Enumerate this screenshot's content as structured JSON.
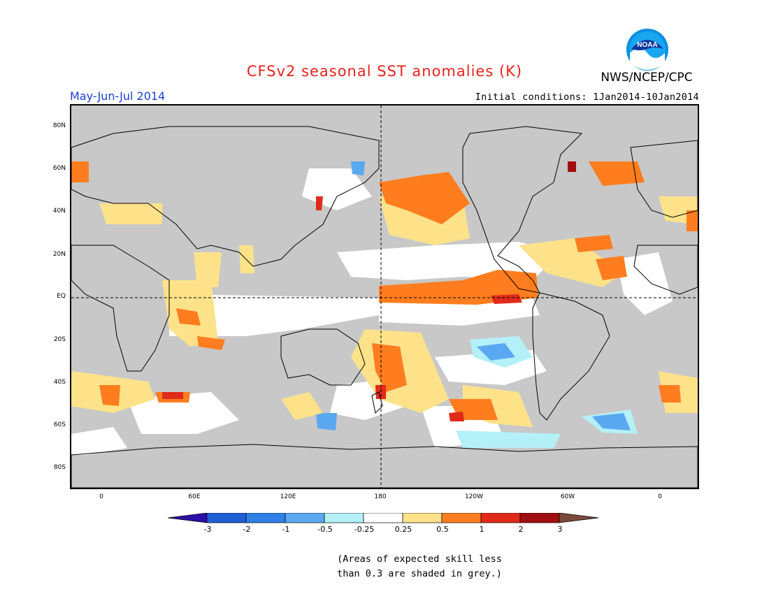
{
  "title": "CFSv2 seasonal SST anomalies (K)",
  "agency": "NWS/NCEP/CPC",
  "logo_text": "NOAA",
  "period": "May-Jun-Jul 2014",
  "initial_conditions": "Initial conditions: 1Jan2014-10Jan2014",
  "lat_labels": [
    "80N",
    "60N",
    "40N",
    "20N",
    "EQ",
    "20S",
    "40S",
    "60S",
    "80S"
  ],
  "lon_labels": [
    "0",
    "60E",
    "120E",
    "180",
    "120W",
    "60W",
    "0"
  ],
  "colorbar": {
    "tick_labels": [
      "-3",
      "-2",
      "-1",
      "-0.5",
      "-0.25",
      "0.25",
      "0.5",
      "1",
      "2",
      "3"
    ],
    "colors": [
      "#2b0fa8",
      "#1f5fd6",
      "#2e80e6",
      "#5aa8f0",
      "#b4f0f8",
      "#ffffff",
      "#fde28a",
      "#ff7d1e",
      "#e02a1a",
      "#a00e0e",
      "#7a4a3a"
    ]
  },
  "legend_colors": {
    "land": "#c8c8c8",
    "low_skill": "#c8c8c8",
    "neutral": "#ffffff"
  },
  "note_line1": "(Areas of expected skill less",
  "note_line2": "than 0.3 are shaded in grey.)"
}
